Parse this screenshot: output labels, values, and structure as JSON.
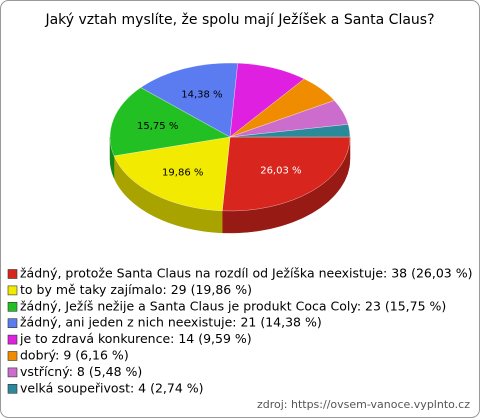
{
  "chart_data": {
    "type": "pie3d",
    "title": "Jaký vztah myslíte, že spolu mají Ježíšek a Santa Claus?",
    "categories": [
      "žádný, protože Santa Claus na rozdíl od Ježíška neexistuje",
      "to by mě taky zajímalo",
      "žádný, Ježíš nežije a Santa Claus je produkt Coca Coly",
      "žádný, ani jeden z nich neexistuje",
      "je to zdravá konkurence",
      "dobrý",
      "vstřícný",
      "velká soupeřivost"
    ],
    "values": [
      26.03,
      19.86,
      15.75,
      14.38,
      9.59,
      6.16,
      5.48,
      2.74
    ],
    "value_labels": [
      "26,03 %",
      "19,86 %",
      "15,75 %",
      "14,38 %",
      null,
      null,
      null,
      null
    ],
    "legend": [
      "žádný, protože Santa Claus na rozdíl od Ježíška neexistuje: 38 (26,03 %)",
      "to by mě taky zajímalo: 29 (19,86 %)",
      "žádný, Ježíš nežije a Santa Claus je produkt Coca Coly: 23 (15,75 %)",
      "žádný, ani jeden z nich neexistuje: 21 (14,38 %)",
      "je to zdravá konkurence: 14 (9,59 %)",
      "dobrý: 9 (6,16 %)",
      "vstřícný: 8 (5,48 %)",
      "velká soupeřivost: 4 (2,74 %)"
    ],
    "colors": [
      "#d8261e",
      "#f2ea00",
      "#22c022",
      "#5a7cf0",
      "#e020e0",
      "#f08c00",
      "#cc6ccc",
      "#2a8a9a"
    ],
    "source": "zdroj: https://ovsem-vanoce.vyplnto.cz"
  }
}
